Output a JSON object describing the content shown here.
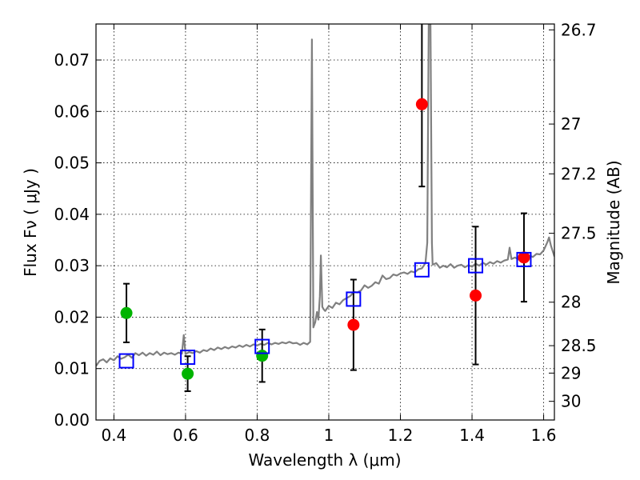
{
  "chart_data": {
    "type": "scatter",
    "xlabel": "Wavelength  λ (μm)",
    "ylabel": "Flux  Fν  ( μJy )",
    "ylabel2": "Magnitude (AB)",
    "xlim": [
      0.35,
      1.63
    ],
    "ylim": [
      0.0,
      0.077
    ],
    "grid": true,
    "x_ticks": [
      {
        "value": 0.4,
        "label": "0.4"
      },
      {
        "value": 0.6,
        "label": "0.6"
      },
      {
        "value": 0.8,
        "label": "0.8"
      },
      {
        "value": 1.0,
        "label": "1"
      },
      {
        "value": 1.2,
        "label": "1.2"
      },
      {
        "value": 1.4,
        "label": "1.4"
      },
      {
        "value": 1.6,
        "label": "1.6"
      }
    ],
    "y_ticks": [
      {
        "value": 0.0,
        "label": "0.00"
      },
      {
        "value": 0.01,
        "label": "0.01"
      },
      {
        "value": 0.02,
        "label": "0.02"
      },
      {
        "value": 0.03,
        "label": "0.03"
      },
      {
        "value": 0.04,
        "label": "0.04"
      },
      {
        "value": 0.05,
        "label": "0.05"
      },
      {
        "value": 0.06,
        "label": "0.06"
      },
      {
        "value": 0.07,
        "label": "0.07"
      }
    ],
    "mag_ticks": [
      {
        "value": 26.7,
        "label": "26.7"
      },
      {
        "value": 27.0,
        "label": "27"
      },
      {
        "value": 27.2,
        "label": "27.2"
      },
      {
        "value": 27.5,
        "label": "27.5"
      },
      {
        "value": 28.0,
        "label": "28"
      },
      {
        "value": 28.5,
        "label": "28.5"
      },
      {
        "value": 29.0,
        "label": "29"
      },
      {
        "value": 30.0,
        "label": "30"
      }
    ],
    "series": [
      {
        "color": "#00b400",
        "marker": "circle",
        "points": [
          {
            "x": 0.435,
            "y": 0.0208,
            "yerr": 0.0057
          },
          {
            "x": 0.606,
            "y": 0.009,
            "yerr": 0.0034
          },
          {
            "x": 0.814,
            "y": 0.0125,
            "yerr": 0.0051
          }
        ]
      },
      {
        "color": "#ff0000",
        "marker": "circle",
        "points": [
          {
            "x": 1.069,
            "y": 0.0185,
            "yerr": 0.0088
          },
          {
            "x": 1.26,
            "y": 0.0614,
            "yerr": 0.016
          },
          {
            "x": 1.41,
            "y": 0.0242,
            "yerr": 0.0134
          },
          {
            "x": 1.545,
            "y": 0.0316,
            "yerr": 0.0086
          }
        ]
      },
      {
        "color": "#0000ff",
        "marker": "open-square",
        "points": [
          {
            "x": 0.435,
            "y": 0.0115
          },
          {
            "x": 0.606,
            "y": 0.0122
          },
          {
            "x": 0.814,
            "y": 0.0143
          },
          {
            "x": 1.069,
            "y": 0.0235
          },
          {
            "x": 1.26,
            "y": 0.0292
          },
          {
            "x": 1.41,
            "y": 0.03
          },
          {
            "x": 1.545,
            "y": 0.0312
          }
        ]
      },
      {
        "color": "#808080",
        "marker": "line",
        "points": [
          {
            "x": 0.35,
            "y": 0.0105
          },
          {
            "x": 0.36,
            "y": 0.0115
          },
          {
            "x": 0.37,
            "y": 0.0118
          },
          {
            "x": 0.38,
            "y": 0.0112
          },
          {
            "x": 0.39,
            "y": 0.012
          },
          {
            "x": 0.4,
            "y": 0.0116
          },
          {
            "x": 0.41,
            "y": 0.0124
          },
          {
            "x": 0.42,
            "y": 0.0119
          },
          {
            "x": 0.43,
            "y": 0.0122
          },
          {
            "x": 0.44,
            "y": 0.0127
          },
          {
            "x": 0.45,
            "y": 0.0121
          },
          {
            "x": 0.46,
            "y": 0.013
          },
          {
            "x": 0.47,
            "y": 0.0126
          },
          {
            "x": 0.48,
            "y": 0.0131
          },
          {
            "x": 0.49,
            "y": 0.0125
          },
          {
            "x": 0.5,
            "y": 0.013
          },
          {
            "x": 0.51,
            "y": 0.0127
          },
          {
            "x": 0.52,
            "y": 0.0133
          },
          {
            "x": 0.53,
            "y": 0.0126
          },
          {
            "x": 0.54,
            "y": 0.0131
          },
          {
            "x": 0.55,
            "y": 0.0128
          },
          {
            "x": 0.56,
            "y": 0.013
          },
          {
            "x": 0.57,
            "y": 0.0127
          },
          {
            "x": 0.58,
            "y": 0.0131
          },
          {
            "x": 0.59,
            "y": 0.0129
          },
          {
            "x": 0.595,
            "y": 0.0165
          },
          {
            "x": 0.6,
            "y": 0.0128
          },
          {
            "x": 0.61,
            "y": 0.0132
          },
          {
            "x": 0.62,
            "y": 0.013
          },
          {
            "x": 0.63,
            "y": 0.0134
          },
          {
            "x": 0.64,
            "y": 0.0131
          },
          {
            "x": 0.65,
            "y": 0.0136
          },
          {
            "x": 0.66,
            "y": 0.0134
          },
          {
            "x": 0.67,
            "y": 0.0139
          },
          {
            "x": 0.68,
            "y": 0.0136
          },
          {
            "x": 0.69,
            "y": 0.0141
          },
          {
            "x": 0.7,
            "y": 0.0138
          },
          {
            "x": 0.71,
            "y": 0.0142
          },
          {
            "x": 0.72,
            "y": 0.0139
          },
          {
            "x": 0.73,
            "y": 0.0143
          },
          {
            "x": 0.74,
            "y": 0.0141
          },
          {
            "x": 0.75,
            "y": 0.0145
          },
          {
            "x": 0.76,
            "y": 0.0142
          },
          {
            "x": 0.77,
            "y": 0.0146
          },
          {
            "x": 0.78,
            "y": 0.0143
          },
          {
            "x": 0.79,
            "y": 0.0147
          },
          {
            "x": 0.8,
            "y": 0.0145
          },
          {
            "x": 0.81,
            "y": 0.0148
          },
          {
            "x": 0.82,
            "y": 0.0146
          },
          {
            "x": 0.83,
            "y": 0.015
          },
          {
            "x": 0.84,
            "y": 0.0147
          },
          {
            "x": 0.85,
            "y": 0.015
          },
          {
            "x": 0.86,
            "y": 0.0148
          },
          {
            "x": 0.87,
            "y": 0.0151
          },
          {
            "x": 0.88,
            "y": 0.0149
          },
          {
            "x": 0.89,
            "y": 0.0152
          },
          {
            "x": 0.9,
            "y": 0.0149
          },
          {
            "x": 0.91,
            "y": 0.015
          },
          {
            "x": 0.92,
            "y": 0.0146
          },
          {
            "x": 0.93,
            "y": 0.015
          },
          {
            "x": 0.94,
            "y": 0.0147
          },
          {
            "x": 0.948,
            "y": 0.0152
          },
          {
            "x": 0.953,
            "y": 0.074
          },
          {
            "x": 0.957,
            "y": 0.018
          },
          {
            "x": 0.962,
            "y": 0.019
          },
          {
            "x": 0.967,
            "y": 0.021
          },
          {
            "x": 0.971,
            "y": 0.0195
          },
          {
            "x": 0.975,
            "y": 0.024
          },
          {
            "x": 0.978,
            "y": 0.032
          },
          {
            "x": 0.982,
            "y": 0.022
          },
          {
            "x": 0.986,
            "y": 0.0215
          },
          {
            "x": 0.99,
            "y": 0.0212
          },
          {
            "x": 1.0,
            "y": 0.0222
          },
          {
            "x": 1.01,
            "y": 0.0218
          },
          {
            "x": 1.02,
            "y": 0.0228
          },
          {
            "x": 1.03,
            "y": 0.0225
          },
          {
            "x": 1.04,
            "y": 0.0233
          },
          {
            "x": 1.05,
            "y": 0.0237
          },
          {
            "x": 1.06,
            "y": 0.0241
          },
          {
            "x": 1.07,
            "y": 0.0249
          },
          {
            "x": 1.08,
            "y": 0.0248
          },
          {
            "x": 1.09,
            "y": 0.0252
          },
          {
            "x": 1.1,
            "y": 0.0262
          },
          {
            "x": 1.11,
            "y": 0.0257
          },
          {
            "x": 1.12,
            "y": 0.0261
          },
          {
            "x": 1.13,
            "y": 0.0268
          },
          {
            "x": 1.14,
            "y": 0.0265
          },
          {
            "x": 1.15,
            "y": 0.0281
          },
          {
            "x": 1.16,
            "y": 0.0274
          },
          {
            "x": 1.17,
            "y": 0.0276
          },
          {
            "x": 1.18,
            "y": 0.0283
          },
          {
            "x": 1.19,
            "y": 0.0281
          },
          {
            "x": 1.2,
            "y": 0.0285
          },
          {
            "x": 1.21,
            "y": 0.0287
          },
          {
            "x": 1.22,
            "y": 0.0284
          },
          {
            "x": 1.23,
            "y": 0.0289
          },
          {
            "x": 1.24,
            "y": 0.0287
          },
          {
            "x": 1.25,
            "y": 0.0293
          },
          {
            "x": 1.26,
            "y": 0.0295
          },
          {
            "x": 1.27,
            "y": 0.0305
          },
          {
            "x": 1.275,
            "y": 0.0345
          },
          {
            "x": 1.279,
            "y": 0.077
          },
          {
            "x": 1.284,
            "y": 0.077
          },
          {
            "x": 1.288,
            "y": 0.0345
          },
          {
            "x": 1.29,
            "y": 0.0302
          },
          {
            "x": 1.3,
            "y": 0.0305
          },
          {
            "x": 1.31,
            "y": 0.0296
          },
          {
            "x": 1.32,
            "y": 0.03
          },
          {
            "x": 1.33,
            "y": 0.0297
          },
          {
            "x": 1.34,
            "y": 0.0303
          },
          {
            "x": 1.35,
            "y": 0.0296
          },
          {
            "x": 1.36,
            "y": 0.03
          },
          {
            "x": 1.37,
            "y": 0.0302
          },
          {
            "x": 1.38,
            "y": 0.0297
          },
          {
            "x": 1.39,
            "y": 0.0301
          },
          {
            "x": 1.4,
            "y": 0.0298
          },
          {
            "x": 1.41,
            "y": 0.0304
          },
          {
            "x": 1.42,
            "y": 0.03
          },
          {
            "x": 1.43,
            "y": 0.0306
          },
          {
            "x": 1.44,
            "y": 0.0302
          },
          {
            "x": 1.45,
            "y": 0.0307
          },
          {
            "x": 1.46,
            "y": 0.0304
          },
          {
            "x": 1.47,
            "y": 0.0309
          },
          {
            "x": 1.48,
            "y": 0.0306
          },
          {
            "x": 1.49,
            "y": 0.031
          },
          {
            "x": 1.5,
            "y": 0.0312
          },
          {
            "x": 1.505,
            "y": 0.0335
          },
          {
            "x": 1.51,
            "y": 0.0313
          },
          {
            "x": 1.52,
            "y": 0.0316
          },
          {
            "x": 1.53,
            "y": 0.0312
          },
          {
            "x": 1.54,
            "y": 0.0318
          },
          {
            "x": 1.55,
            "y": 0.0315
          },
          {
            "x": 1.56,
            "y": 0.032
          },
          {
            "x": 1.57,
            "y": 0.0317
          },
          {
            "x": 1.58,
            "y": 0.0323
          },
          {
            "x": 1.59,
            "y": 0.0322
          },
          {
            "x": 1.6,
            "y": 0.033
          },
          {
            "x": 1.61,
            "y": 0.0345
          },
          {
            "x": 1.615,
            "y": 0.0355
          },
          {
            "x": 1.62,
            "y": 0.034
          },
          {
            "x": 1.63,
            "y": 0.0318
          }
        ]
      }
    ]
  }
}
